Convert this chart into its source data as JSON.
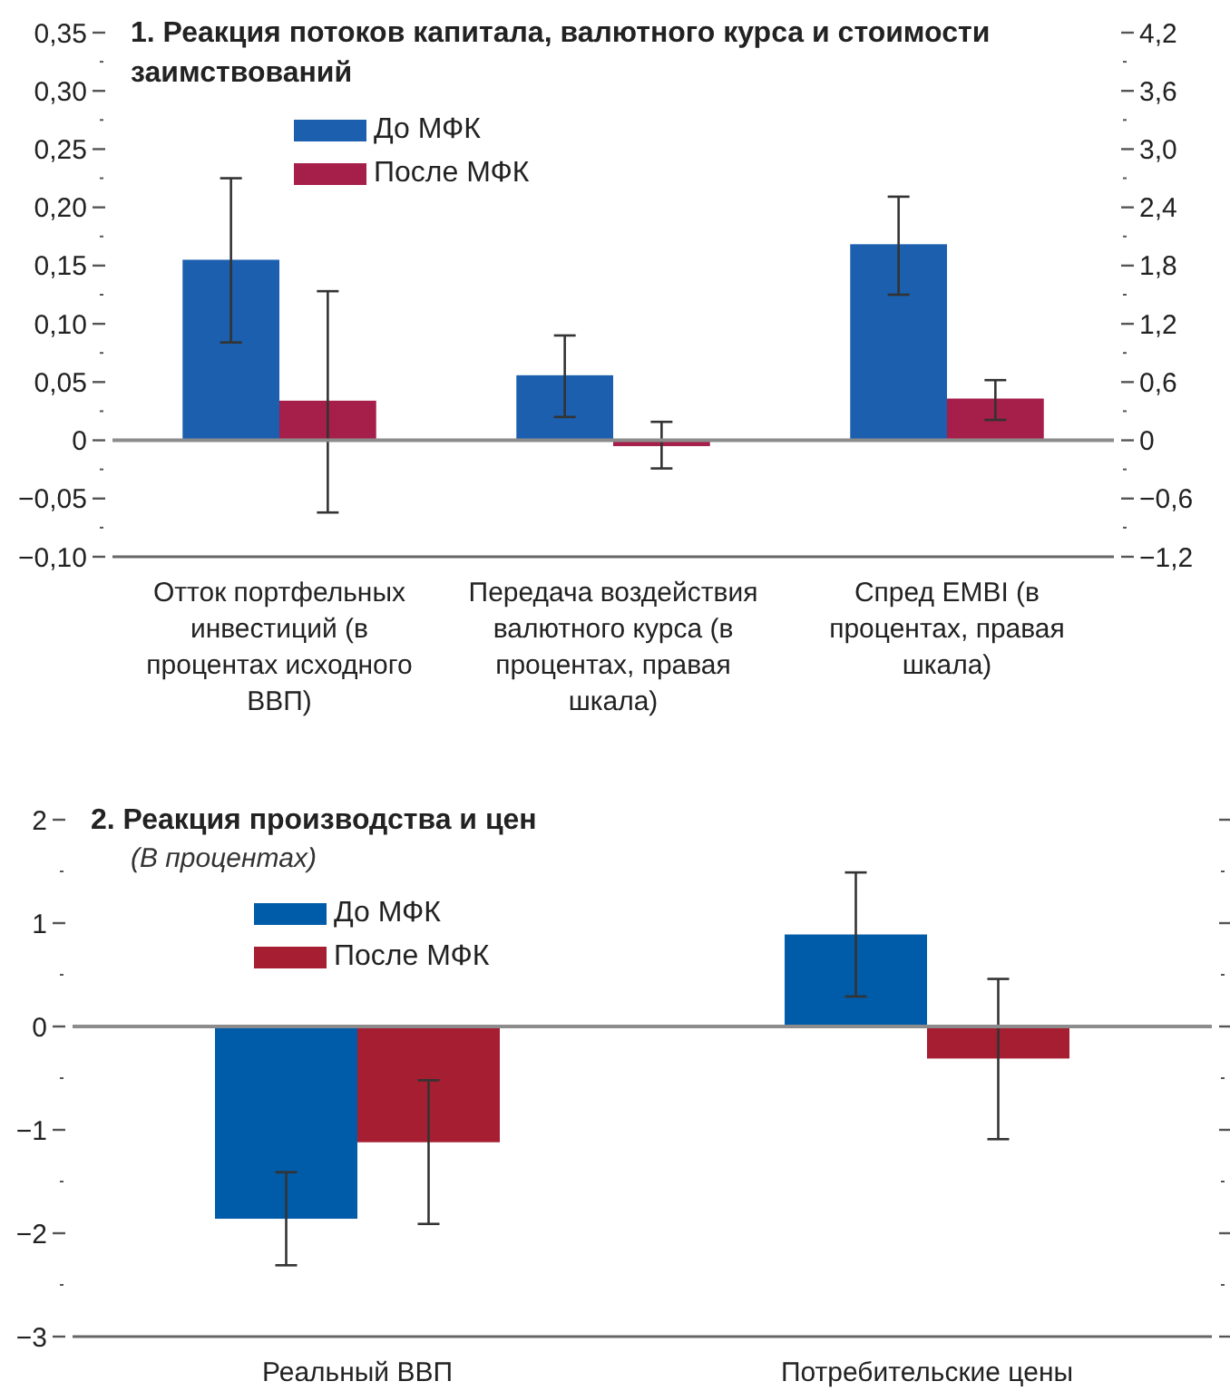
{
  "chart_data": [
    {
      "type": "bar",
      "title": "1. Реакция потоков капитала, валютного курса и стоимости заимствований",
      "categories": [
        "Отток портфельных инвестиций (в процентах исходного ВВП)",
        "Передача воздействия валютного курса (в процентах, правая шкала)",
        "Спред EMBI (в процентах, правая шкала)"
      ],
      "series": [
        {
          "name": "До МФК",
          "color": "#1b5fae",
          "values": [
            0.155,
            null,
            null
          ],
          "errors": [
            [
              0.084,
              0.225
            ],
            null,
            null
          ]
        },
        {
          "name": "После МФК",
          "color": "#a61f4b",
          "values": [
            0.034,
            null,
            null
          ],
          "errors": [
            [
              -0.062,
              0.128
            ],
            null,
            null
          ]
        },
        {
          "color": "#1b5fae",
          "axis": "y2",
          "values": [
            null,
            0.67,
            2.02
          ],
          "errors": [
            null,
            [
              0.24,
              1.08
            ],
            [
              1.5,
              2.51
            ]
          ]
        },
        {
          "color": "#a61f4b",
          "axis": "y2",
          "values": [
            null,
            -0.06,
            0.43
          ],
          "errors": [
            null,
            [
              -0.29,
              0.19
            ],
            [
              0.21,
              0.62
            ]
          ]
        }
      ],
      "ylim": [
        -0.1,
        0.35
      ],
      "yticks": [
        {
          "value": 0.35,
          "label": "0,35"
        },
        {
          "value": 0.325,
          "label": null
        },
        {
          "value": 0.3,
          "label": "0,30"
        },
        {
          "value": 0.275,
          "label": null
        },
        {
          "value": 0.25,
          "label": "0,25"
        },
        {
          "value": 0.225,
          "label": null
        },
        {
          "value": 0.2,
          "label": "0,20"
        },
        {
          "value": 0.175,
          "label": null
        },
        {
          "value": 0.15,
          "label": "0,15"
        },
        {
          "value": 0.125,
          "label": null
        },
        {
          "value": 0.1,
          "label": "0,10"
        },
        {
          "value": 0.075,
          "label": null
        },
        {
          "value": 0.05,
          "label": "0,05"
        },
        {
          "value": 0.025,
          "label": null
        },
        0,
        {
          "value": -0.025,
          "label": null
        },
        {
          "value": -0.05,
          "label": "−0,05"
        },
        {
          "value": -0.075,
          "label": null
        },
        {
          "value": -0.1,
          "label": "−0,10"
        }
      ],
      "y2lim": [
        -1.2,
        4.2
      ],
      "y2ticks": [
        {
          "value": 4.2,
          "label": "4,2"
        },
        {
          "value": 3.9,
          "label": null
        },
        {
          "value": 3.6,
          "label": "3,6"
        },
        {
          "value": 3.3,
          "label": null
        },
        {
          "value": 3,
          "label": "3,0"
        },
        {
          "value": 2.7,
          "label": null
        },
        {
          "value": 2.4,
          "label": "2,4"
        },
        {
          "value": 2.1,
          "label": null
        },
        {
          "value": 1.8,
          "label": "1,8"
        },
        {
          "value": 1.5,
          "label": null
        },
        {
          "value": 1.2,
          "label": "1,2"
        },
        {
          "value": 0.9,
          "label": null
        },
        {
          "value": 0.6,
          "label": "0,6"
        },
        {
          "value": 0.3,
          "label": null
        },
        0,
        {
          "value": -0.3,
          "label": null
        },
        {
          "value": -0.6,
          "label": "−0,6"
        },
        {
          "value": -0.9,
          "label": null
        },
        {
          "value": -1.2,
          "label": "−1,2"
        }
      ],
      "ref_lines": [
        {
          "axis": "y",
          "value": 0,
          "color": "#8c8c8c"
        }
      ],
      "grid": false,
      "legend": "top left"
    },
    {
      "type": "bar",
      "title": "2. Реакция производства и цен",
      "subtitle": "(В процентах)",
      "categories": [
        "Реальный ВВП",
        "Потребительские цены"
      ],
      "series": [
        {
          "name": "До МФК",
          "color": "#005ca8",
          "values": [
            -1.86,
            0.89
          ],
          "errors": [
            [
              -2.31,
              -1.41
            ],
            [
              0.29,
              1.49
            ]
          ]
        },
        {
          "name": "После МФК",
          "color": "#a51e32",
          "values": [
            -1.12,
            -0.31
          ],
          "errors": [
            [
              -1.91,
              -0.52
            ],
            [
              -1.09,
              0.46
            ]
          ]
        }
      ],
      "ylim": [
        -3,
        2
      ],
      "yticks": [
        2,
        {
          "value": 1.5,
          "label": null
        },
        1,
        {
          "value": 0.5,
          "label": null
        },
        0,
        {
          "value": -0.5,
          "label": null
        },
        {
          "value": -1,
          "label": "−1"
        },
        {
          "value": -1.5,
          "label": null
        },
        {
          "value": -2,
          "label": "−2"
        },
        {
          "value": -2.5,
          "label": null
        },
        {
          "value": -3,
          "label": "−3"
        }
      ],
      "ref_lines": [
        {
          "axis": "y",
          "value": 0,
          "color": "#8c8c8c"
        }
      ],
      "grid": false,
      "legend": "top left"
    }
  ]
}
